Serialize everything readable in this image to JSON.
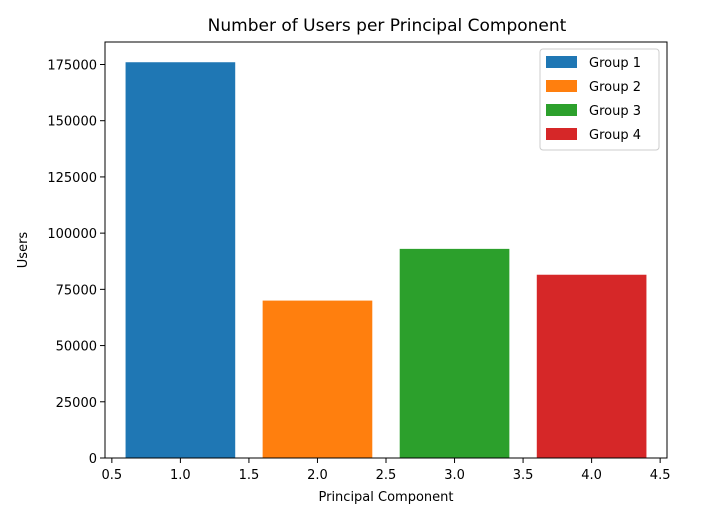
{
  "chart_data": {
    "type": "bar",
    "title": "Number of Users per Principal Component",
    "xlabel": "Principal Component",
    "ylabel": "Users",
    "xlim": [
      0.45,
      4.55
    ],
    "ylim": [
      0,
      185000
    ],
    "bar_width": 0.8,
    "x_ticks": [
      0.5,
      1.0,
      1.5,
      2.0,
      2.5,
      3.0,
      3.5,
      4.0,
      4.5
    ],
    "x_tick_labels": [
      "0.5",
      "1.0",
      "1.5",
      "2.0",
      "2.5",
      "3.0",
      "3.5",
      "4.0",
      "4.5"
    ],
    "y_ticks": [
      0,
      25000,
      50000,
      75000,
      100000,
      125000,
      150000,
      175000
    ],
    "y_tick_labels": [
      "0",
      "25000",
      "50000",
      "75000",
      "100000",
      "125000",
      "150000",
      "175000"
    ],
    "grid": false,
    "legend_position": "top-right",
    "series": [
      {
        "name": "Group 1",
        "x": 1,
        "value": 176000,
        "color": "#1f77b4"
      },
      {
        "name": "Group 2",
        "x": 2,
        "value": 70000,
        "color": "#ff7f0e"
      },
      {
        "name": "Group 3",
        "x": 3,
        "value": 93000,
        "color": "#2ca02c"
      },
      {
        "name": "Group 4",
        "x": 4,
        "value": 81500,
        "color": "#d62728"
      }
    ]
  }
}
